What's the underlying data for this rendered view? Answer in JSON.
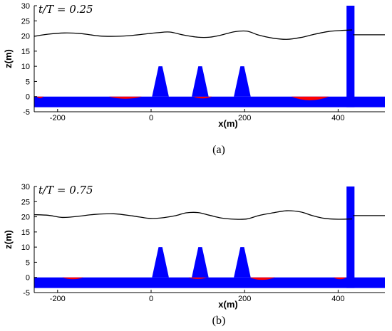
{
  "chart_data": [
    {
      "type": "line",
      "caption": "(a)",
      "annotation": "t/T = 0.25",
      "xlabel": "x(m)",
      "ylabel": "z(m)",
      "xlim": [
        -250,
        500
      ],
      "ylim": [
        -5,
        30
      ],
      "xticks": [
        -200,
        0,
        200,
        400
      ],
      "yticks": [
        -5,
        0,
        5,
        10,
        15,
        20,
        25,
        30
      ],
      "free_surface": {
        "x": [
          -250,
          -220,
          -185,
          -150,
          -110,
          -75,
          -40,
          -5,
          15,
          40,
          70,
          100,
          125,
          150,
          178,
          205,
          230,
          260,
          290,
          320,
          350,
          380,
          405,
          430
        ],
        "z": [
          19.9,
          20.6,
          21.0,
          20.8,
          20.0,
          19.9,
          20.2,
          20.8,
          21.1,
          21.3,
          20.3,
          19.6,
          19.6,
          20.3,
          21.4,
          21.6,
          20.3,
          19.3,
          18.9,
          19.5,
          20.6,
          21.5,
          21.8,
          22.0
        ]
      },
      "still_water_right": {
        "x": [
          432,
          500
        ],
        "z": 20.4
      },
      "seabed_deformation": [
        {
          "x": [
            -245,
            -230
          ],
          "z": -0.5
        },
        {
          "x": [
            -90,
            -20
          ],
          "z": -0.7
        },
        {
          "x": [
            90,
            130
          ],
          "z": -0.6
        },
        {
          "x": [
            300,
            380
          ],
          "z": -1.2
        }
      ],
      "breakwaters": [
        {
          "x_center": 20,
          "base_width": 36,
          "top_width": 8,
          "height": 10
        },
        {
          "x_center": 105,
          "base_width": 36,
          "top_width": 8,
          "height": 10
        },
        {
          "x_center": 195,
          "base_width": 36,
          "top_width": 8,
          "height": 10
        }
      ],
      "wall": {
        "x": [
          418,
          435
        ],
        "height": 30
      },
      "seabed": {
        "top": 0,
        "bottom": -3.5
      },
      "colors": {
        "solid": "#0000ff",
        "deformation": "#ff0000",
        "surface": "#000000"
      }
    },
    {
      "type": "line",
      "caption": "(b)",
      "annotation": "t/T = 0.75",
      "xlabel": "x(m)",
      "ylabel": "z(m)",
      "xlim": [
        -250,
        500
      ],
      "ylim": [
        -5,
        30
      ],
      "xticks": [
        -200,
        0,
        200,
        400
      ],
      "yticks": [
        -5,
        0,
        5,
        10,
        15,
        20,
        25,
        30
      ],
      "free_surface": {
        "x": [
          -250,
          -220,
          -190,
          -160,
          -120,
          -80,
          -40,
          -5,
          20,
          50,
          75,
          100,
          125,
          150,
          180,
          205,
          230,
          260,
          290,
          320,
          345,
          370,
          400,
          430
        ],
        "z": [
          20.7,
          20.5,
          19.8,
          20.1,
          20.8,
          21.0,
          20.3,
          19.5,
          19.6,
          20.3,
          21.3,
          21.4,
          20.5,
          19.6,
          19.2,
          19.3,
          20.4,
          21.3,
          22.0,
          21.6,
          20.4,
          19.5,
          19.2,
          19.3
        ]
      },
      "still_water_right": {
        "x": [
          432,
          500
        ],
        "z": 20.4
      },
      "seabed_deformation": [
        {
          "x": [
            -190,
            -145
          ],
          "z": -0.6
        },
        {
          "x": [
            80,
            120
          ],
          "z": -0.5
        },
        {
          "x": [
            210,
            265
          ],
          "z": -0.8
        },
        {
          "x": [
            390,
            418
          ],
          "z": -0.6
        }
      ],
      "breakwaters": [
        {
          "x_center": 20,
          "base_width": 36,
          "top_width": 8,
          "height": 10
        },
        {
          "x_center": 105,
          "base_width": 36,
          "top_width": 8,
          "height": 10
        },
        {
          "x_center": 195,
          "base_width": 36,
          "top_width": 8,
          "height": 10
        }
      ],
      "wall": {
        "x": [
          418,
          435
        ],
        "height": 30
      },
      "seabed": {
        "top": 0,
        "bottom": -3.5
      },
      "colors": {
        "solid": "#0000ff",
        "deformation": "#ff0000",
        "surface": "#000000"
      }
    }
  ]
}
